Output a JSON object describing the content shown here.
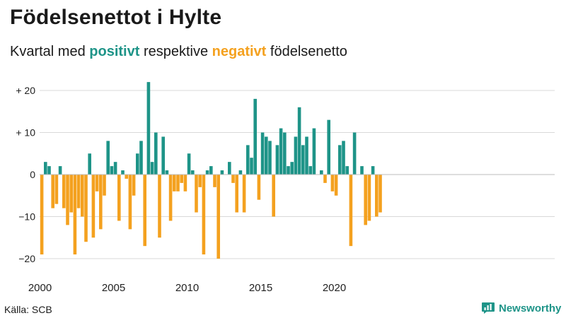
{
  "chart_data": {
    "type": "bar",
    "title": "Födelsenettot i Hylte",
    "subtitle": {
      "prefix": "Kvartal med ",
      "positive_word": "positivt",
      "middle": " respektive ",
      "negative_word": "negativt",
      "suffix": " födelsenetto"
    },
    "x_tick_labels": [
      "2000",
      "2005",
      "2010",
      "2015",
      "2020"
    ],
    "x_tick_years": [
      2000,
      2005,
      2010,
      2015,
      2020
    ],
    "y_ticks": [
      20,
      10,
      0,
      -10,
      -20
    ],
    "y_tick_labels": [
      "+ 20",
      "+ 10",
      "0",
      "−10",
      "−20"
    ],
    "ylim": [
      -21,
      23
    ],
    "start_year": 2000,
    "periods_per_year": 4,
    "values": [
      -19,
      3,
      2,
      -8,
      -7,
      2,
      -8,
      -12,
      -9,
      -19,
      -8,
      -10,
      -16,
      5,
      -15,
      -4,
      -13,
      -5,
      8,
      2,
      3,
      -11,
      1,
      -1,
      -13,
      -5,
      5,
      8,
      -17,
      22,
      3,
      10,
      -15,
      9,
      1,
      -11,
      -4,
      -4,
      -2,
      -4,
      5,
      1,
      -9,
      -3,
      -19,
      1,
      2,
      -3,
      -20,
      1,
      0,
      3,
      -2,
      -9,
      1,
      -9,
      7,
      4,
      18,
      -6,
      10,
      9,
      8,
      -10,
      7,
      11,
      10,
      2,
      3,
      9,
      16,
      7,
      9,
      2,
      11,
      0,
      1,
      -2,
      13,
      -4,
      -5,
      7,
      8,
      2,
      -17,
      10,
      0,
      2,
      -12,
      -11,
      2,
      -10,
      -9
    ],
    "colors": {
      "positive": "#1e9488",
      "negative": "#f4a11f",
      "grid": "#d9d9d9",
      "axis_text": "#222222"
    }
  },
  "footer": {
    "source": "Källa: SCB",
    "brand": "Newsworthy"
  }
}
